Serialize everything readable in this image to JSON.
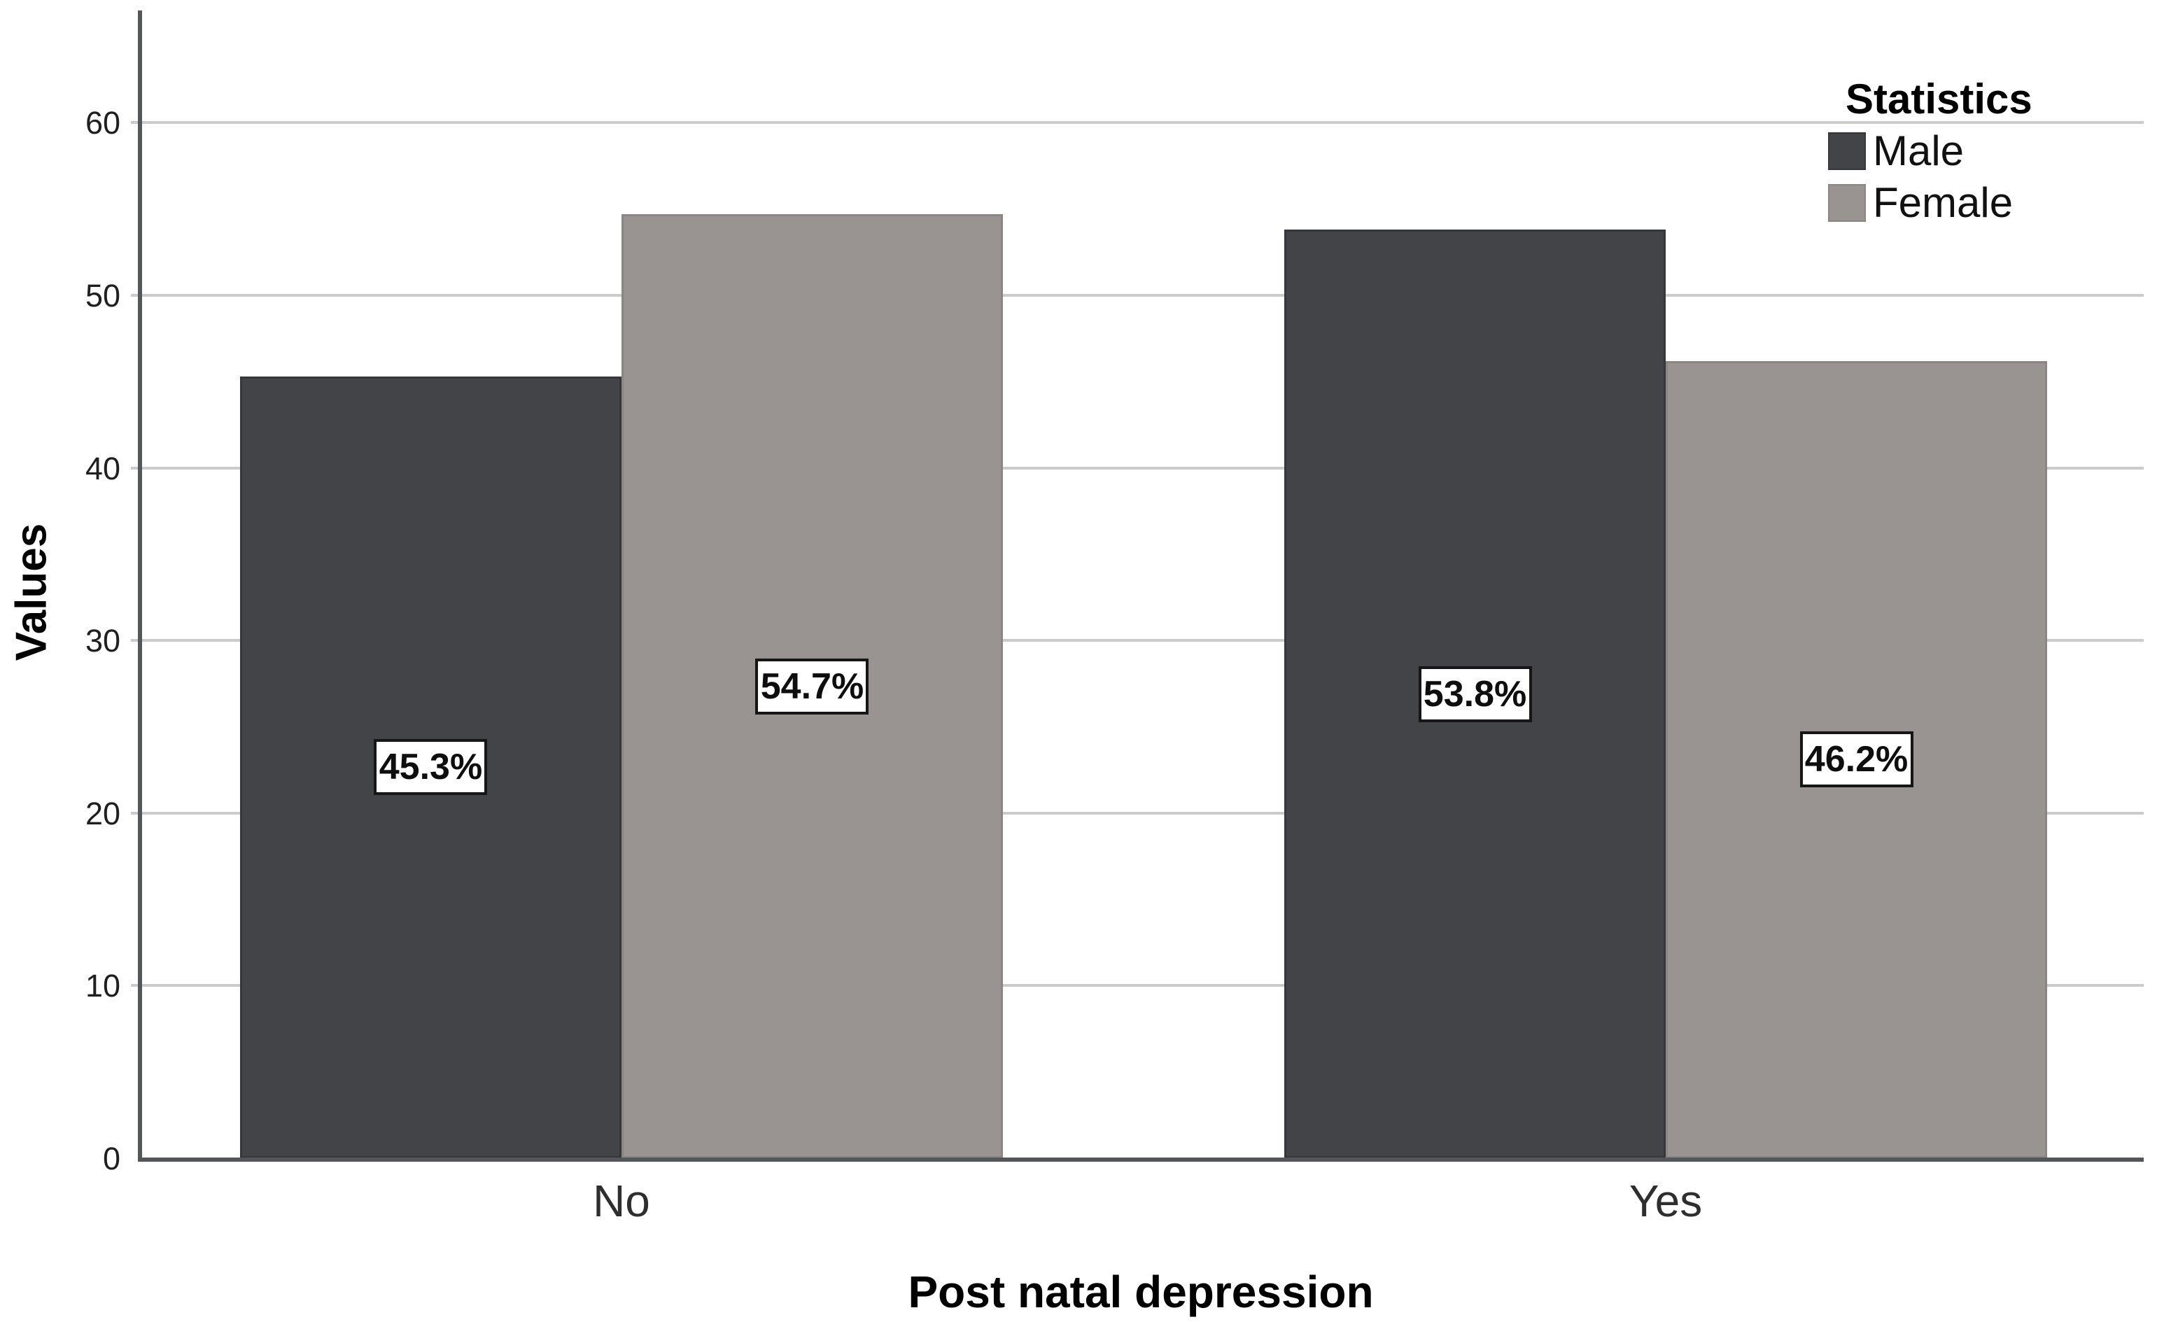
{
  "chart_data": {
    "type": "bar",
    "title": "",
    "categories": [
      "No",
      "Yes"
    ],
    "series": [
      {
        "name": "Male",
        "color": "#424447",
        "border_color": "#35373a",
        "values": [
          45.3,
          53.8
        ],
        "labels": [
          "45.3%",
          "53.8%"
        ]
      },
      {
        "name": "Female",
        "color": "#999392",
        "border_color": "#8b8684",
        "values": [
          54.7,
          46.2
        ],
        "labels": [
          "54.7%",
          "46.2%"
        ]
      }
    ],
    "xlabel": "Post natal depression",
    "ylabel": "Values",
    "ylim": [
      0,
      66.5
    ],
    "yticks": [
      0,
      10,
      20,
      30,
      40,
      50,
      60
    ],
    "grid": true,
    "legend": {
      "title": "Statistics",
      "position": "top-right"
    },
    "colors": {
      "background": "#ffffff",
      "gridline": "#cbcbcb",
      "axis": "#54565a",
      "tick_label": "#1f1f1f",
      "value_label_bg": "#ffffff",
      "value_label_border": "#161616"
    }
  }
}
